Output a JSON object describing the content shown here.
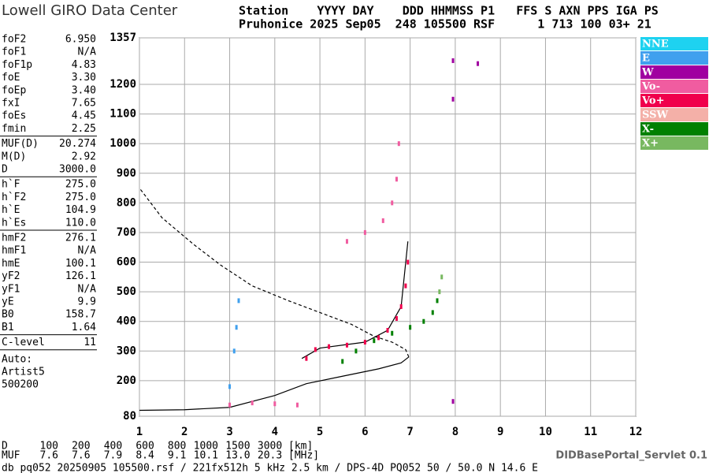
{
  "header": {
    "logo": "Lowell GIRO Data Center",
    "line1": "Station    YYYY DAY    DDD HHMMSS P1   FFS S AXN PPS IGA PS",
    "line2": "Pruhonice 2025 Sep05  248 105500 RSF      1 713 100 03+ 21"
  },
  "parameters": [
    [
      [
        "foF2",
        "6.950"
      ],
      [
        "foF1",
        "N/A"
      ],
      [
        "foF1p",
        "4.83"
      ],
      [
        "foE",
        "3.30"
      ],
      [
        "foEp",
        "3.40"
      ],
      [
        "fxI",
        "7.65"
      ],
      [
        "foEs",
        "4.45"
      ],
      [
        "fmin",
        "2.25"
      ]
    ],
    [
      [
        "MUF(D)",
        "20.274"
      ],
      [
        "M(D)",
        "2.92"
      ],
      [
        "D",
        "3000.0"
      ]
    ],
    [
      [
        "h`F",
        "275.0"
      ],
      [
        "h`F2",
        "275.0"
      ],
      [
        "h`E",
        "104.9"
      ],
      [
        "h`Es",
        "110.0"
      ]
    ],
    [
      [
        "hmF2",
        "276.1"
      ],
      [
        "hmF1",
        "N/A"
      ],
      [
        "hmE",
        "100.1"
      ],
      [
        "yF2",
        "126.1"
      ],
      [
        "yF1",
        "N/A"
      ],
      [
        "yE",
        "9.9"
      ],
      [
        "B0",
        "158.7"
      ],
      [
        "B1",
        "1.64"
      ]
    ],
    [
      [
        "C-level",
        "11"
      ]
    ]
  ],
  "auto": [
    "Auto:",
    "Artist5",
    "500200"
  ],
  "chart_data": {
    "type": "scatter",
    "xlim": [
      1,
      12
    ],
    "xticks": [
      1,
      2,
      3,
      4,
      5,
      6,
      7,
      8,
      9,
      10,
      11,
      12
    ],
    "ylim": [
      80,
      1357
    ],
    "yticks": [
      80,
      200,
      300,
      400,
      500,
      600,
      700,
      800,
      900,
      1000,
      1100,
      1200,
      1357
    ],
    "grid": true,
    "legend": [
      {
        "name": "NNE",
        "color": "#1ed2f0"
      },
      {
        "name": "E",
        "color": "#40a0ee"
      },
      {
        "name": "W",
        "color": "#a000a0"
      },
      {
        "name": "Vo-",
        "color": "#f05ca0"
      },
      {
        "name": "Vo+",
        "color": "#f0004c"
      },
      {
        "name": "SSW",
        "color": "#f4b0a8"
      },
      {
        "name": "X-",
        "color": "#008000"
      },
      {
        "name": "X+",
        "color": "#78b860"
      }
    ],
    "series": [
      {
        "name": "Vo+",
        "color": "#f0004c",
        "x": [
          4.7,
          4.9,
          5.2,
          5.6,
          6.0,
          6.3,
          6.5,
          6.7,
          6.8,
          6.9,
          6.95
        ],
        "values": [
          275,
          305,
          315,
          320,
          330,
          345,
          370,
          410,
          450,
          520,
          600
        ]
      },
      {
        "name": "Vo-",
        "color": "#f05ca0",
        "x": [
          3.0,
          3.5,
          4.0,
          4.5,
          5.6,
          6.0,
          6.4,
          6.6,
          6.7,
          6.75
        ],
        "values": [
          118,
          125,
          122,
          118,
          670,
          700,
          740,
          800,
          880,
          1000
        ]
      },
      {
        "name": "X-",
        "color": "#008000",
        "x": [
          5.5,
          5.8,
          6.2,
          6.6,
          7.0,
          7.3,
          7.5,
          7.6
        ],
        "values": [
          265,
          300,
          335,
          360,
          380,
          400,
          430,
          470
        ]
      },
      {
        "name": "X+",
        "color": "#78b860",
        "x": [
          7.65,
          7.7
        ],
        "values": [
          500,
          550
        ]
      },
      {
        "name": "E",
        "color": "#40a0ee",
        "x": [
          3.0,
          3.1,
          3.15,
          3.2
        ],
        "values": [
          180,
          300,
          380,
          470
        ]
      },
      {
        "name": "W",
        "color": "#a000a0",
        "x": [
          7.95,
          7.95,
          8.5,
          7.95
        ],
        "values": [
          1280,
          1150,
          1270,
          130
        ]
      }
    ],
    "lines": [
      {
        "style": "solid",
        "x": [
          1,
          2,
          3,
          4,
          4.7,
          5.5,
          6.3,
          6.8,
          6.97
        ],
        "y": [
          100,
          102,
          110,
          150,
          190,
          215,
          240,
          260,
          280
        ]
      },
      {
        "style": "dashed",
        "x": [
          6.97,
          6.9,
          6.6,
          6.2,
          5.7,
          5.0,
          4.3,
          3.5,
          2.8,
          2.2,
          1.5,
          1
        ],
        "y": [
          280,
          305,
          330,
          350,
          390,
          430,
          470,
          520,
          590,
          660,
          750,
          850
        ]
      },
      {
        "style": "solid",
        "x": [
          4.6,
          5.0,
          6.0,
          6.5,
          6.8,
          6.95
        ],
        "y": [
          275,
          310,
          330,
          370,
          450,
          670
        ]
      }
    ]
  },
  "footer": {
    "d_label": "D",
    "d_values": [
      "100",
      "200",
      "400",
      "600",
      "800",
      "1000",
      "1500",
      "3000"
    ],
    "d_unit": "[km]",
    "muf_label": "MUF",
    "muf_values": [
      "7.6",
      "7.6",
      "7.9",
      "8.4",
      "9.1",
      "10.1",
      "13.0",
      "20.3"
    ],
    "muf_unit": "[MHz]",
    "server": "DIDBasePortal_Servlet 0.1",
    "file": "db pq052 20250905 105500.rsf / 221fx512h 5 kHz 2.5 km / DPS-4D PQ052 50 / 50.0 N 14.6 E"
  }
}
